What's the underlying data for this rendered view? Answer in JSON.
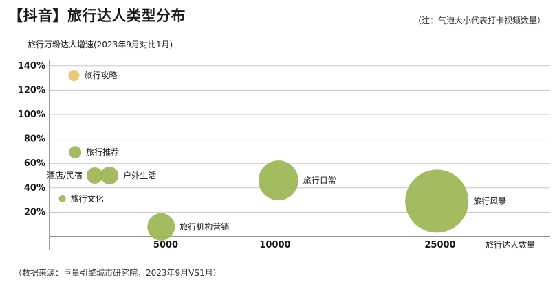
{
  "title": "【抖音】旅行达人类型分布",
  "note": "（注：气泡大小代表打卡视频数量）",
  "source": "（数据来源：巨量引擎城市研究院，2023年9月VS1月）",
  "chart_data": {
    "type": "scatter",
    "subtype": "bubble",
    "ylabel": "旅行万粉达人增速(2023年9月对比1月)",
    "xlabel": "旅行达人数量",
    "y_ticks": [
      "140%",
      "120%",
      "100%",
      "80%",
      "60%",
      "40%",
      "20%"
    ],
    "x_ticks": [
      "5000",
      "10000",
      "25000"
    ],
    "grid": true,
    "points": [
      {
        "label": "旅行攻略",
        "x": 1050,
        "y": 132,
        "size": 8,
        "color": "#e8c46a"
      },
      {
        "label": "旅行推荐",
        "x": 1100,
        "y": 69,
        "size": 9,
        "color": "#9cb653"
      },
      {
        "label": "酒店/民宿",
        "x": 1950,
        "y": 50,
        "size": 12,
        "color": "#9cb653"
      },
      {
        "label": "户外生活",
        "x": 2580,
        "y": 50,
        "size": 13,
        "color": "#9cb653"
      },
      {
        "label": "旅行文化",
        "x": 550,
        "y": 31,
        "size": 5,
        "color": "#9cb653"
      },
      {
        "label": "旅行机构营销",
        "x": 4800,
        "y": 8,
        "size": 20,
        "color": "#9cb653"
      },
      {
        "label": "旅行日常",
        "x": 10300,
        "y": 46,
        "size": 29,
        "color": "#9cb653"
      },
      {
        "label": "旅行风景",
        "x": 24700,
        "y": 29,
        "size": 46,
        "color": "#9cb653"
      }
    ]
  }
}
